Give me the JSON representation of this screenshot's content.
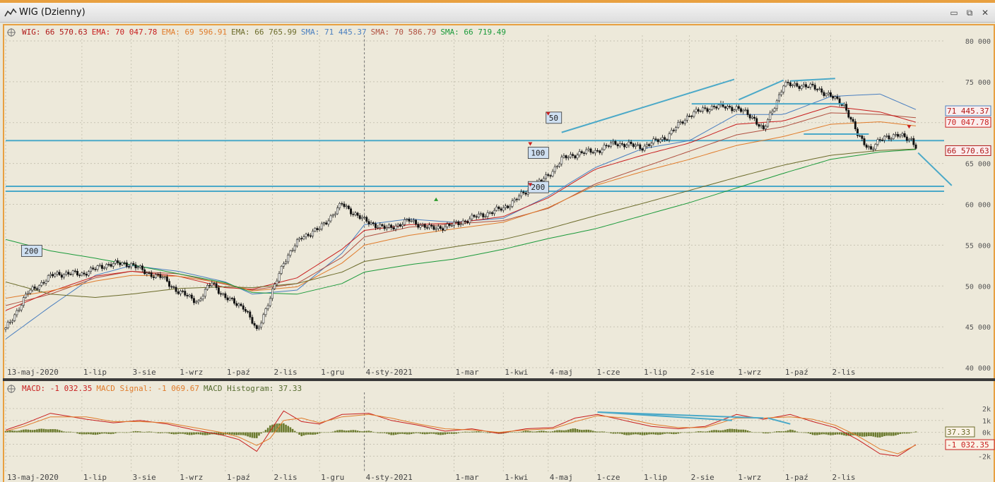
{
  "window": {
    "title": "WIG (Dzienny)",
    "minimize": "▭",
    "restore": "⧉",
    "close": "✕"
  },
  "main_legend": [
    {
      "text": "WIG: 66 570.63",
      "color": "#b01818"
    },
    {
      "text": "EMA: 70 047.78",
      "color": "#c81e1e"
    },
    {
      "text": "EMA: 69 596.91",
      "color": "#e07b2a"
    },
    {
      "text": "EMA: 66 765.99",
      "color": "#6b6b2a"
    },
    {
      "text": "SMA: 71 445.37",
      "color": "#4a7fc0"
    },
    {
      "text": "SMA: 70 586.79",
      "color": "#b05040"
    },
    {
      "text": "SMA: 66 719.49",
      "color": "#1a9a3a"
    }
  ],
  "macd_legend": [
    {
      "text": "MACD: -1 032.35",
      "color": "#c81e1e"
    },
    {
      "text": "MACD Signal: -1 069.67",
      "color": "#e07b2a"
    },
    {
      "text": "MACD Histogram: 37.33",
      "color": "#556b2f"
    }
  ],
  "price_boxes": [
    {
      "text": "71 445.37",
      "value": 71445.37,
      "border": "#4a7fc0",
      "color": "#b01818"
    },
    {
      "text": "70 047.78",
      "value": 70047.78,
      "border": "#c81e1e",
      "color": "#c81e1e"
    },
    {
      "text": "66 570.63",
      "value": 66570.63,
      "border": "#b01818",
      "color": "#b01818"
    }
  ],
  "macd_boxes": [
    {
      "text": "37.33",
      "value": 37.33,
      "border": "#6b6b2a",
      "color": "#6b6b2a"
    },
    {
      "text": "-1 032.35",
      "value": -1032.35,
      "border": "#c81e1e",
      "color": "#c81e1e"
    }
  ],
  "period_markers": [
    {
      "text": "200",
      "x_index": 8,
      "y": 54300
    },
    {
      "text": "100",
      "x_index": 234,
      "y": 66300
    },
    {
      "text": "200",
      "x_index": 234,
      "y": 62100
    },
    {
      "text": "50",
      "x_index": 242,
      "y": 70600
    }
  ],
  "chart_data": [
    {
      "type": "candlestick",
      "title": "WIG (Dzienny)",
      "x_labels": [
        "13-maj-2020",
        "1-lip",
        "3-sie",
        "1-wrz",
        "1-paź",
        "2-lis",
        "1-gru",
        "4-sty-2021",
        "1-mar",
        "1-kwi",
        "4-maj",
        "1-cze",
        "1-lip",
        "2-sie",
        "1-wrz",
        "1-paź",
        "2-lis"
      ],
      "x_label_index": [
        0,
        34,
        56,
        77,
        98,
        119,
        140,
        160,
        200,
        222,
        242,
        263,
        284,
        305,
        326,
        347,
        368
      ],
      "n_bars": 407,
      "ylim": [
        40000,
        80000
      ],
      "yticks": [
        "40 000",
        "45 000",
        "50 000",
        "55 000",
        "60 000",
        "65 000",
        "70 000",
        "75 000",
        "80 000"
      ],
      "ytick_values": [
        40000,
        45000,
        50000,
        55000,
        60000,
        65000,
        70000,
        75000,
        80000
      ],
      "close_path": {
        "x": [
          0,
          10,
          22,
          34,
          46,
          56,
          62,
          70,
          77,
          86,
          92,
          98,
          106,
          112,
          118,
          124,
          132,
          140,
          150,
          160,
          170,
          180,
          190,
          200,
          210,
          222,
          232,
          242,
          248,
          256,
          263,
          272,
          284,
          295,
          305,
          316,
          326,
          334,
          338,
          347,
          354,
          362,
          368,
          374,
          380,
          386,
          392,
          398,
          404,
          406
        ],
        "y": [
          44700,
          49200,
          51500,
          51500,
          52700,
          52700,
          51700,
          51000,
          49300,
          48100,
          50500,
          48500,
          47500,
          44500,
          48500,
          53000,
          56000,
          57000,
          60000,
          58000,
          57000,
          58000,
          57000,
          57500,
          58500,
          59500,
          61500,
          63500,
          65500,
          66300,
          66500,
          67500,
          67000,
          68300,
          71000,
          72000,
          71800,
          70500,
          69000,
          74600,
          74600,
          74200,
          73200,
          72200,
          68500,
          66700,
          68300,
          68400,
          68000,
          67100
        ]
      },
      "lines": [
        {
          "name": "SMA",
          "value": 71445.37,
          "color": "#4a7fc0",
          "x": [
            0,
            20,
            40,
            56,
            77,
            98,
            110,
            130,
            150,
            160,
            180,
            200,
            222,
            242,
            263,
            284,
            305,
            326,
            347,
            368,
            390,
            406
          ],
          "y": [
            43500,
            47500,
            51300,
            52500,
            51800,
            50500,
            49000,
            49500,
            54000,
            57500,
            58200,
            57800,
            58300,
            61000,
            64500,
            66800,
            67800,
            71000,
            71000,
            73200,
            73500,
            71600
          ]
        },
        {
          "name": "SMA",
          "value": 70586.79,
          "color": "#b05040",
          "x": [
            0,
            20,
            40,
            56,
            77,
            98,
            110,
            130,
            150,
            160,
            180,
            200,
            222,
            242,
            263,
            284,
            305,
            326,
            347,
            368,
            390,
            406
          ],
          "y": [
            47600,
            49000,
            51000,
            51800,
            51500,
            50200,
            49500,
            50300,
            53500,
            56000,
            57200,
            57600,
            58000,
            59500,
            62500,
            64500,
            66500,
            68500,
            69500,
            71200,
            71000,
            70600
          ]
        },
        {
          "name": "EMA",
          "value": 70047.78,
          "color": "#c81e1e",
          "x": [
            0,
            20,
            40,
            56,
            77,
            98,
            110,
            130,
            150,
            160,
            180,
            200,
            222,
            242,
            263,
            284,
            305,
            326,
            347,
            368,
            390,
            406
          ],
          "y": [
            47000,
            49300,
            51200,
            51800,
            51200,
            49800,
            49600,
            51000,
            54500,
            56800,
            57500,
            57700,
            58500,
            60800,
            64300,
            66000,
            67500,
            69800,
            70200,
            72000,
            71300,
            70050
          ]
        },
        {
          "name": "EMA",
          "value": 69596.91,
          "color": "#e07b2a",
          "x": [
            0,
            20,
            40,
            56,
            77,
            98,
            110,
            130,
            150,
            160,
            180,
            200,
            222,
            242,
            263,
            284,
            305,
            326,
            347,
            368,
            390,
            406
          ],
          "y": [
            48500,
            49400,
            50600,
            51300,
            51200,
            50300,
            49400,
            49900,
            52800,
            55000,
            56200,
            57000,
            57800,
            59600,
            62300,
            64000,
            65500,
            67200,
            68300,
            69800,
            70100,
            69600
          ]
        },
        {
          "name": "EMA",
          "value": 66765.99,
          "color": "#6b6b2a",
          "x": [
            0,
            20,
            40,
            56,
            77,
            98,
            110,
            130,
            150,
            160,
            180,
            200,
            222,
            242,
            263,
            284,
            305,
            326,
            347,
            368,
            390,
            406
          ],
          "y": [
            50500,
            49000,
            48600,
            49000,
            49700,
            49900,
            49800,
            50300,
            51700,
            53000,
            53900,
            54800,
            55700,
            57000,
            58600,
            60100,
            61700,
            63300,
            64800,
            66000,
            66600,
            66770
          ]
        },
        {
          "name": "SMA",
          "value": 66719.49,
          "color": "#1a9a3a",
          "x": [
            0,
            20,
            40,
            56,
            77,
            98,
            110,
            130,
            150,
            160,
            180,
            200,
            222,
            242,
            263,
            284,
            305,
            326,
            347,
            368,
            390,
            406
          ],
          "y": [
            55700,
            54300,
            53400,
            52600,
            51500,
            50400,
            49200,
            49000,
            50300,
            51700,
            52600,
            53300,
            54500,
            55800,
            57000,
            58600,
            60200,
            62000,
            63800,
            65500,
            66400,
            66720
          ]
        }
      ],
      "hlines": [
        67800,
        62200,
        61600
      ],
      "trendlines": [
        {
          "x": [
            248,
            325
          ],
          "y": [
            68800,
            75300
          ]
        },
        {
          "x": [
            327,
            347
          ],
          "y": [
            72800,
            75200
          ]
        },
        {
          "x": [
            350,
            370
          ],
          "y": [
            75100,
            75400
          ]
        },
        {
          "x": [
            306,
            374
          ],
          "y": [
            72300,
            72300
          ]
        },
        {
          "x": [
            356,
            385
          ],
          "y": [
            68600,
            68600
          ]
        },
        {
          "x": [
            407,
            422
          ],
          "y": [
            66300,
            62300
          ]
        }
      ]
    },
    {
      "type": "line",
      "title": "MACD",
      "ylim": [
        -3400,
        3000
      ],
      "yticks": [
        "-2k",
        "-1k",
        "0k",
        "1k",
        "2k"
      ],
      "ytick_values": [
        -2000,
        -1000,
        0,
        1000,
        2000
      ],
      "series": [
        {
          "name": "MACD",
          "color": "#c81e1e",
          "x": [
            0,
            8,
            20,
            36,
            48,
            60,
            72,
            84,
            96,
            104,
            112,
            118,
            124,
            132,
            140,
            150,
            162,
            172,
            184,
            196,
            208,
            220,
            232,
            244,
            254,
            264,
            276,
            288,
            300,
            312,
            326,
            338,
            350,
            360,
            370,
            380,
            390,
            398,
            406
          ],
          "y": [
            200,
            700,
            1600,
            1100,
            800,
            1000,
            700,
            200,
            -200,
            -600,
            -1600,
            100,
            1800,
            900,
            700,
            1500,
            1600,
            1000,
            600,
            100,
            300,
            -100,
            300,
            400,
            1200,
            1500,
            1000,
            500,
            300,
            500,
            1500,
            1100,
            1500,
            900,
            400,
            -600,
            -1800,
            -2000,
            -1032
          ]
        },
        {
          "name": "MACD Signal",
          "color": "#e07b2a",
          "x": [
            0,
            8,
            20,
            36,
            48,
            60,
            72,
            84,
            96,
            104,
            112,
            118,
            124,
            132,
            140,
            150,
            162,
            172,
            184,
            196,
            208,
            220,
            232,
            244,
            254,
            264,
            276,
            288,
            300,
            312,
            326,
            338,
            350,
            360,
            370,
            380,
            390,
            398,
            406
          ],
          "y": [
            100,
            500,
            1300,
            1300,
            900,
            900,
            800,
            400,
            0,
            -400,
            -1100,
            -500,
            1000,
            1200,
            800,
            1300,
            1500,
            1200,
            700,
            300,
            200,
            0,
            200,
            300,
            900,
            1400,
            1200,
            700,
            400,
            400,
            1200,
            1200,
            1300,
            1100,
            600,
            -300,
            -1400,
            -1800,
            -1070
          ]
        },
        {
          "name": "MACD Histogram",
          "color": "#6b7a2e",
          "x": [
            0,
            8,
            20,
            36,
            48,
            60,
            72,
            84,
            96,
            104,
            112,
            118,
            124,
            132,
            140,
            150,
            162,
            172,
            184,
            196,
            208,
            220,
            232,
            244,
            254,
            264,
            276,
            288,
            300,
            312,
            326,
            338,
            350,
            360,
            370,
            380,
            390,
            398,
            406
          ],
          "y": [
            100,
            200,
            300,
            -200,
            -100,
            100,
            -100,
            -200,
            -200,
            -200,
            -500,
            600,
            800,
            -300,
            -100,
            200,
            100,
            -200,
            -100,
            -200,
            100,
            -100,
            100,
            100,
            300,
            100,
            -200,
            -200,
            -100,
            100,
            300,
            -100,
            200,
            -200,
            -200,
            -300,
            -400,
            -200,
            37
          ]
        }
      ],
      "trendlines": [
        {
          "x": [
            264,
            324
          ],
          "y": [
            1700,
            1000
          ]
        },
        {
          "x": [
            264,
            338
          ],
          "y": [
            1700,
            1200
          ]
        },
        {
          "x": [
            340,
            350
          ],
          "y": [
            1200,
            700
          ]
        }
      ]
    }
  ]
}
